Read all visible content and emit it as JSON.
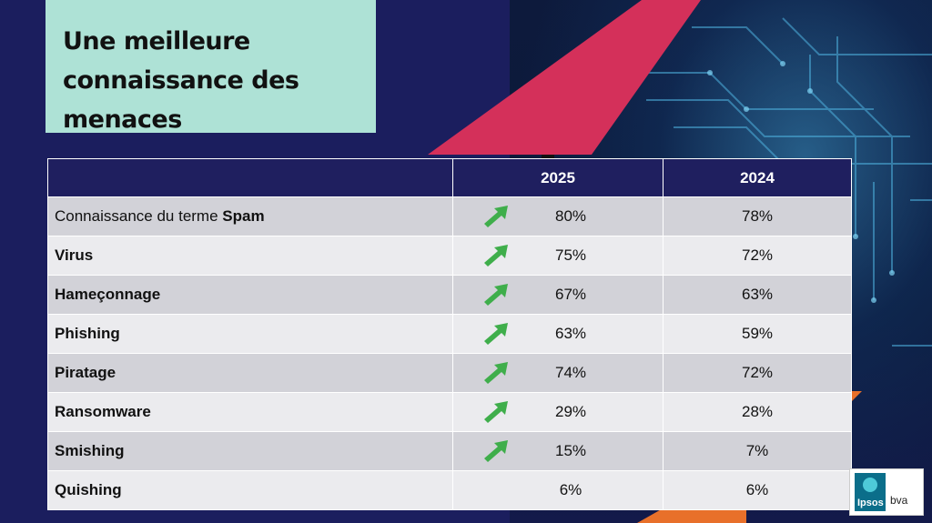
{
  "title": "Une meilleure connaissance des menaces",
  "colors": {
    "background": "#1b1e5e",
    "title_box": "#aee2d6",
    "header": "#1f1f5f",
    "row_dark": "#d2d2d8",
    "row_light": "#ebebee",
    "accent_pink": "#d4305a",
    "arrow_green": "#3fae4b",
    "accent_orange": "#e8702a"
  },
  "table": {
    "headers": [
      "",
      "2025",
      "2024"
    ],
    "rows": [
      {
        "label_prefix": "Connaissance du terme ",
        "label_bold": "Spam",
        "v2025": "80%",
        "v2024": "78%",
        "trend": "up-arrow-icon"
      },
      {
        "label_prefix": "",
        "label_bold": "Virus",
        "v2025": "75%",
        "v2024": "72%",
        "trend": "up-arrow-icon"
      },
      {
        "label_prefix": "",
        "label_bold": "Hameçonnage",
        "v2025": "67%",
        "v2024": "63%",
        "trend": "up-arrow-icon"
      },
      {
        "label_prefix": "",
        "label_bold": "Phishing",
        "v2025": "63%",
        "v2024": "59%",
        "trend": "up-arrow-icon"
      },
      {
        "label_prefix": "",
        "label_bold": "Piratage",
        "v2025": "74%",
        "v2024": "72%",
        "trend": "up-arrow-icon"
      },
      {
        "label_prefix": "",
        "label_bold": "Ransomware",
        "v2025": "29%",
        "v2024": "28%",
        "trend": "up-arrow-icon"
      },
      {
        "label_prefix": "",
        "label_bold": "Smishing",
        "v2025": "15%",
        "v2024": "7%",
        "trend": "up-arrow-icon"
      },
      {
        "label_prefix": "",
        "label_bold": "Quishing",
        "v2025": "6%",
        "v2024": "6%",
        "trend": ""
      }
    ]
  },
  "logo": {
    "brand": "Ipsos",
    "suffix": "bva"
  }
}
